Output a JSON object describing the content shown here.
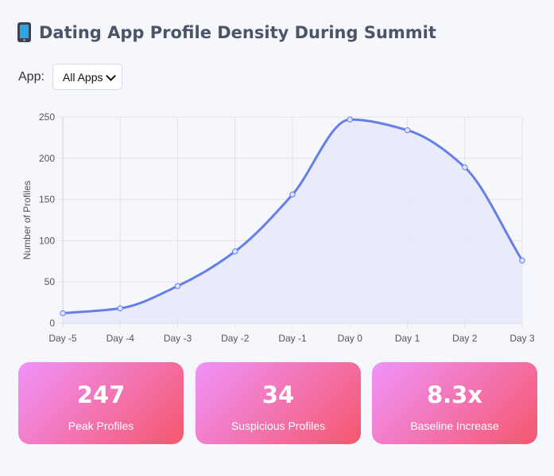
{
  "title": "Dating App Profile Density During Summit",
  "filter": {
    "label": "App:",
    "selected": "All Apps"
  },
  "chart_data": {
    "type": "area",
    "x": [
      "Day -5",
      "Day -4",
      "Day -3",
      "Day -2",
      "Day -1",
      "Day 0",
      "Day 1",
      "Day 2",
      "Day 3"
    ],
    "series": [
      {
        "values": [
          12,
          18,
          45,
          87,
          156,
          247,
          234,
          189,
          76
        ]
      }
    ],
    "ylabel": "Number of Profiles",
    "ylim": [
      0,
      250
    ],
    "yticks": [
      0,
      50,
      100,
      150,
      200,
      250
    ],
    "grid": true,
    "legend": "none",
    "colors": {
      "line": "#667eea",
      "fill": "#e6e9f9"
    }
  },
  "stats": [
    {
      "value": "247",
      "label": "Peak Profiles"
    },
    {
      "value": "34",
      "label": "Suspicious Profiles"
    },
    {
      "value": "8.3x",
      "label": "Baseline Increase"
    }
  ]
}
